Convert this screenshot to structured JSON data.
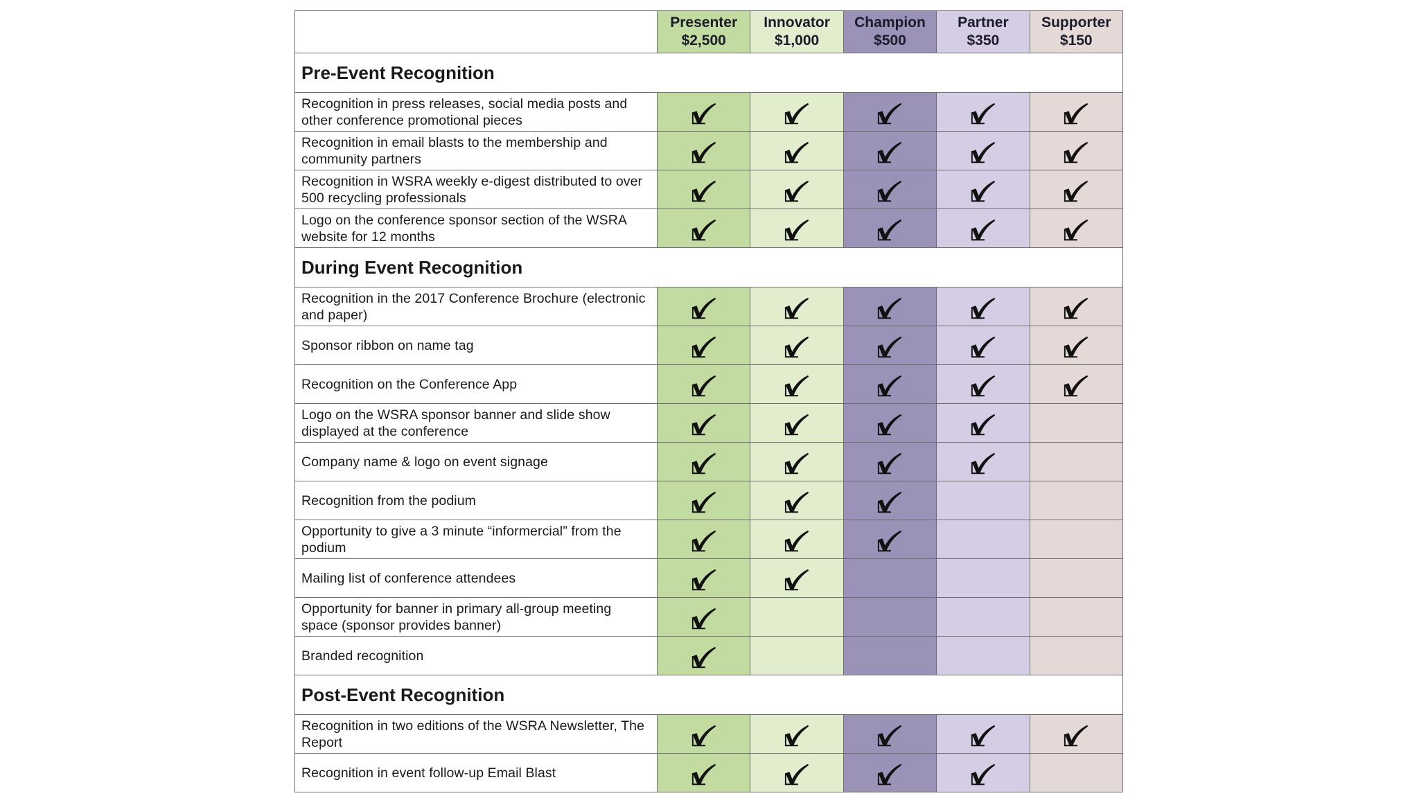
{
  "colors": {
    "presenter": "#c1dba0",
    "innovator": "#e2edce",
    "champion": "#9b92b8",
    "partner": "#d4cde4",
    "supporter": "#e4d9d6",
    "grid": "#6e6e6e"
  },
  "tiers": [
    {
      "name": "Presenter",
      "price": "$2,500"
    },
    {
      "name": "Innovator",
      "price": "$1,000"
    },
    {
      "name": "Champion",
      "price": "$500"
    },
    {
      "name": "Partner",
      "price": "$350"
    },
    {
      "name": "Supporter",
      "price": "$150"
    }
  ],
  "check_icon": "check-mark-icon",
  "sections": [
    {
      "title": "Pre-Event Recognition",
      "rows": [
        {
          "label": "Recognition in press releases, social media posts and other conference promotional pieces",
          "checks": [
            true,
            true,
            true,
            true,
            true
          ]
        },
        {
          "label": "Recognition in email blasts to the membership and community partners",
          "checks": [
            true,
            true,
            true,
            true,
            true
          ]
        },
        {
          "label": "Recognition in WSRA weekly e-digest distributed to over 500 recycling professionals",
          "checks": [
            true,
            true,
            true,
            true,
            true
          ]
        },
        {
          "label": "Logo on the conference sponsor section of the WSRA website for 12 months",
          "checks": [
            true,
            true,
            true,
            true,
            true
          ]
        }
      ]
    },
    {
      "title": "During Event Recognition",
      "rows": [
        {
          "label": "Recognition in the 2017 Conference Brochure (electronic and paper)",
          "checks": [
            true,
            true,
            true,
            true,
            true
          ]
        },
        {
          "label": "Sponsor ribbon on name tag",
          "checks": [
            true,
            true,
            true,
            true,
            true
          ]
        },
        {
          "label": "Recognition on the Conference App",
          "checks": [
            true,
            true,
            true,
            true,
            true
          ]
        },
        {
          "label": "Logo on the WSRA sponsor banner and slide show displayed at the conference",
          "checks": [
            true,
            true,
            true,
            true,
            false
          ]
        },
        {
          "label": "Company name & logo on event signage",
          "checks": [
            true,
            true,
            true,
            true,
            false
          ]
        },
        {
          "label": "Recognition from the podium",
          "checks": [
            true,
            true,
            true,
            false,
            false
          ]
        },
        {
          "label": "Opportunity to give a 3 minute “informercial” from the podium",
          "checks": [
            true,
            true,
            true,
            false,
            false
          ]
        },
        {
          "label": "Mailing list of conference attendees",
          "checks": [
            true,
            true,
            false,
            false,
            false
          ]
        },
        {
          "label": "Opportunity for banner in primary all-group meeting space (sponsor provides banner)",
          "checks": [
            true,
            false,
            false,
            false,
            false
          ]
        },
        {
          "label": "Branded recognition",
          "checks": [
            true,
            false,
            false,
            false,
            false
          ]
        }
      ]
    },
    {
      "title": "Post-Event Recognition",
      "rows": [
        {
          "label": "Recognition in two editions of the WSRA Newsletter, The Report",
          "checks": [
            true,
            true,
            true,
            true,
            true
          ]
        },
        {
          "label": "Recognition in event follow-up Email Blast",
          "checks": [
            true,
            true,
            true,
            true,
            false
          ]
        }
      ]
    }
  ]
}
